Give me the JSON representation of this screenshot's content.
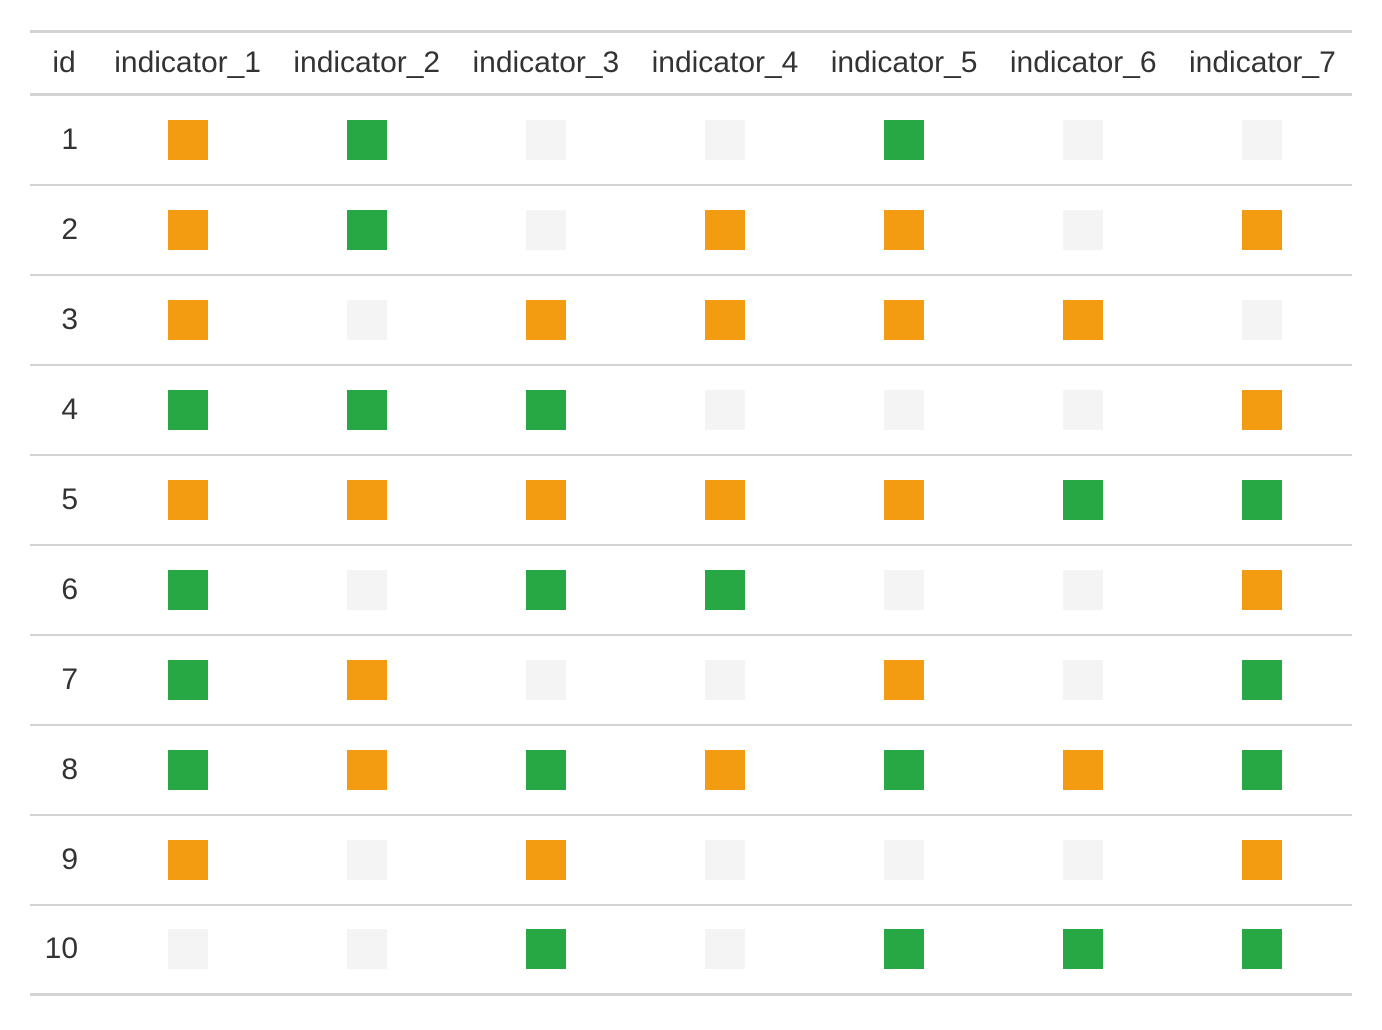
{
  "table": {
    "columns": [
      "id",
      "indicator_1",
      "indicator_2",
      "indicator_3",
      "indicator_4",
      "indicator_5",
      "indicator_6",
      "indicator_7"
    ],
    "colors": {
      "orange": "#f39c12",
      "green": "#28a745",
      "empty": "#f4f4f4"
    },
    "rows": [
      {
        "id": "1",
        "cells": [
          "orange",
          "green",
          "empty",
          "empty",
          "green",
          "empty",
          "empty"
        ]
      },
      {
        "id": "2",
        "cells": [
          "orange",
          "green",
          "empty",
          "orange",
          "orange",
          "empty",
          "orange"
        ]
      },
      {
        "id": "3",
        "cells": [
          "orange",
          "empty",
          "orange",
          "orange",
          "orange",
          "orange",
          "empty"
        ]
      },
      {
        "id": "4",
        "cells": [
          "green",
          "green",
          "green",
          "empty",
          "empty",
          "empty",
          "orange"
        ]
      },
      {
        "id": "5",
        "cells": [
          "orange",
          "orange",
          "orange",
          "orange",
          "orange",
          "green",
          "green"
        ]
      },
      {
        "id": "6",
        "cells": [
          "green",
          "empty",
          "green",
          "green",
          "empty",
          "empty",
          "orange"
        ]
      },
      {
        "id": "7",
        "cells": [
          "green",
          "orange",
          "empty",
          "empty",
          "orange",
          "empty",
          "green"
        ]
      },
      {
        "id": "8",
        "cells": [
          "green",
          "orange",
          "green",
          "orange",
          "green",
          "orange",
          "green"
        ]
      },
      {
        "id": "9",
        "cells": [
          "orange",
          "empty",
          "orange",
          "empty",
          "empty",
          "empty",
          "orange"
        ]
      },
      {
        "id": "10",
        "cells": [
          "empty",
          "empty",
          "green",
          "empty",
          "green",
          "green",
          "green"
        ]
      }
    ]
  }
}
